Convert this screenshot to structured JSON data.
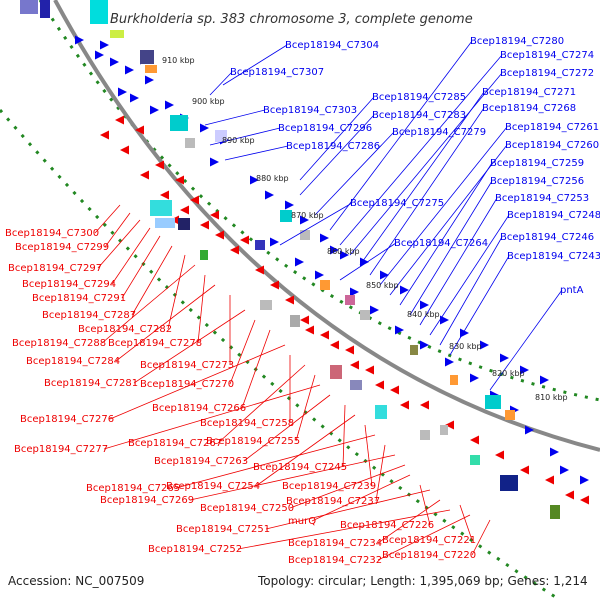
{
  "title": "Burkholderia sp. 383 chromosome 3, complete genome",
  "footer": {
    "accession": "Accession: NC_007509",
    "summary": "Topology: circular; Length: 1,395,069 bp; Genes: 1,214"
  },
  "ticks": [
    "910 kbp",
    "900 kbp",
    "890 kbp",
    "880 kbp",
    "870 kbp",
    "860 kbp",
    "850 kbp",
    "840 kbp",
    "830 kbp",
    "820 kbp",
    "810 kbp"
  ],
  "colors": {
    "forward": "#0000ee",
    "reverse": "#ee0000",
    "backbone": "#888888",
    "ring": "#228822"
  },
  "labels_forward": [
    "Bcep18194_C7304",
    "Bcep18194_C7307",
    "Bcep18194_C7303",
    "Bcep18194_C7296",
    "Bcep18194_C7286",
    "Bcep18194_C7285",
    "Bcep18194_C7283",
    "Bcep18194_C7279",
    "Bcep18194_C7280",
    "Bcep18194_C7274",
    "Bcep18194_C7272",
    "Bcep18194_C7271",
    "Bcep18194_C7268",
    "Bcep18194_C7261",
    "Bcep18194_C7260",
    "Bcep18194_C7259",
    "Bcep18194_C7256",
    "Bcep18194_C7253",
    "Bcep18194_C7275",
    "Bcep18194_C7248",
    "Bcep18194_C7246",
    "Bcep18194_C7264",
    "Bcep18194_C7243",
    "pntA"
  ],
  "labels_reverse": [
    "Bcep18194_C7300",
    "Bcep18194_C7299",
    "Bcep18194_C7297",
    "Bcep18194_C7294",
    "Bcep18194_C7291",
    "Bcep18194_C7287",
    "Bcep18194_C7282",
    "Bcep18194_C7288",
    "Bcep18194_C7278",
    "Bcep18194_C7284",
    "Bcep18194_C7273",
    "Bcep18194_C7281",
    "Bcep18194_C7270",
    "Bcep18194_C7266",
    "Bcep18194_C7276",
    "Bcep18194_C7258",
    "Bcep18194_C7267",
    "Bcep18194_C7255",
    "Bcep18194_C7277",
    "Bcep18194_C7263",
    "Bcep18194_C7245",
    "Bcep18194_C7254",
    "Bcep18194_C7239",
    "Bcep18194_C7265",
    "Bcep18194_C7237",
    "Bcep18194_C7269",
    "Bcep18194_C7250",
    "murQ",
    "Bcep18194_C7226",
    "Bcep18194_C7251",
    "Bcep18194_C7234",
    "Bcep18194_C7221",
    "Bcep18194_C7252",
    "Bcep18194_C7232",
    "Bcep18194_C7220"
  ]
}
